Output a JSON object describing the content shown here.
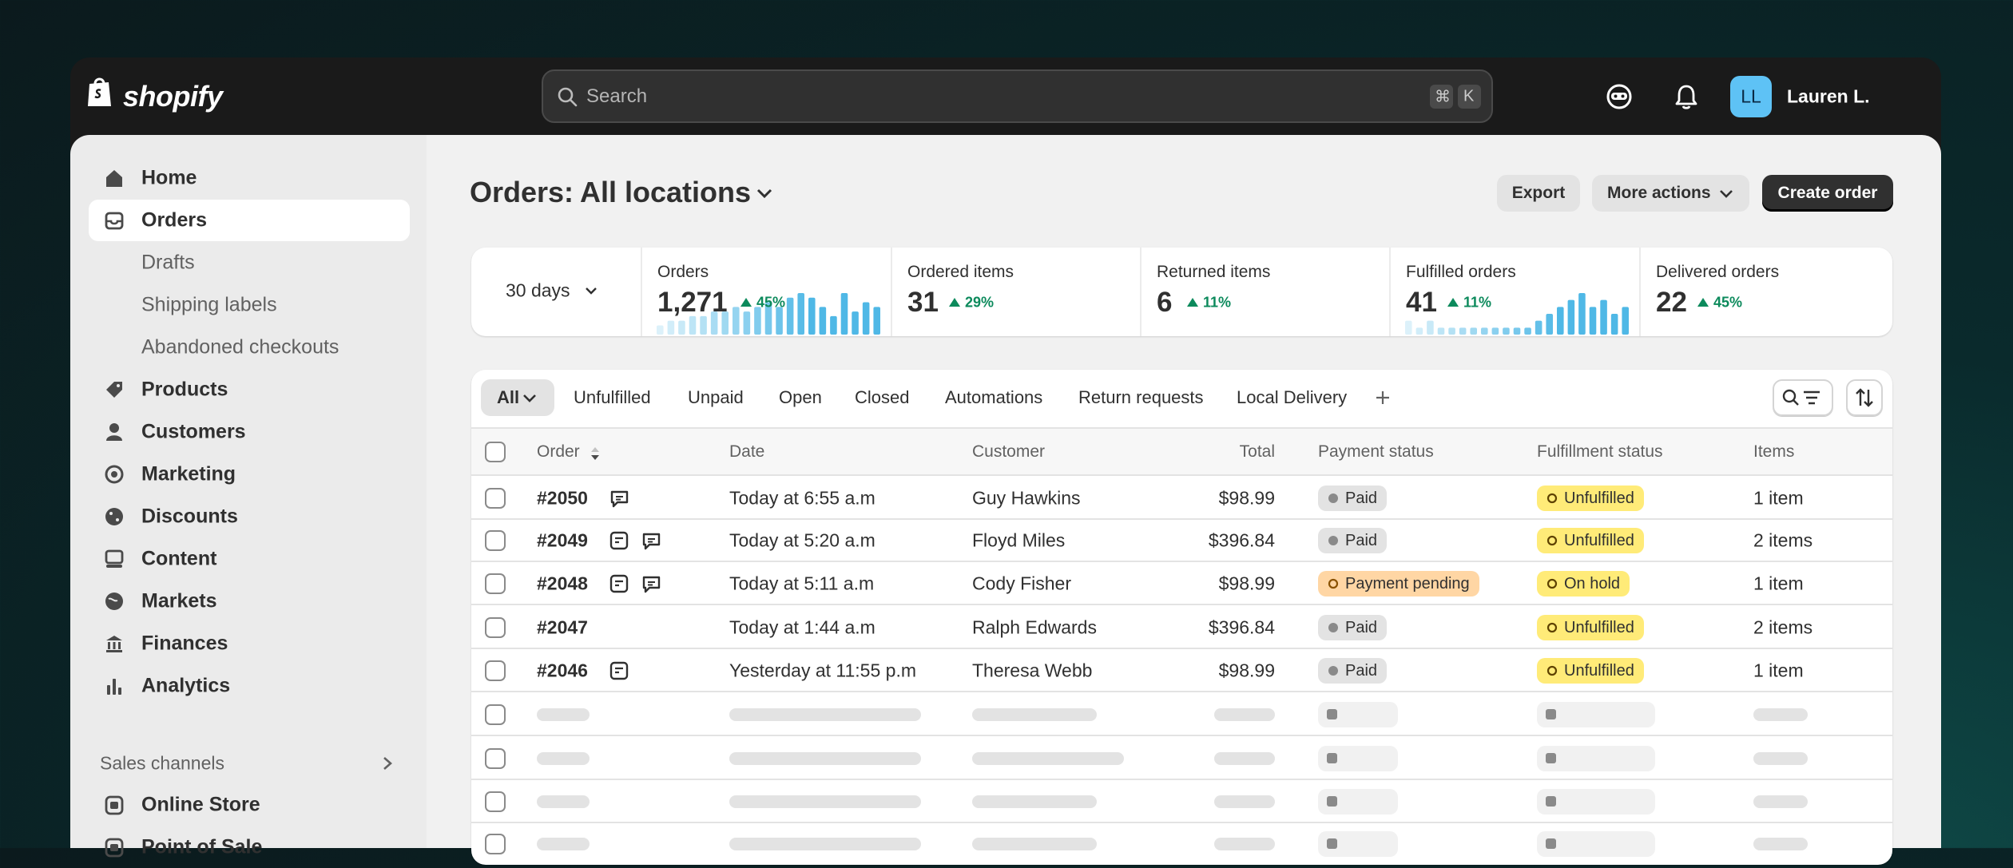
{
  "header": {
    "logo": "shopify",
    "search_placeholder": "Search",
    "shortcut": [
      "⌘",
      "K"
    ],
    "avatar_initials": "LL",
    "user_name": "Lauren L."
  },
  "sidebar": {
    "nav": [
      "Home",
      "Orders",
      "Products",
      "Customers",
      "Marketing",
      "Discounts",
      "Content",
      "Markets",
      "Finances",
      "Analytics"
    ],
    "selected": 1,
    "subnav": [
      "Drafts",
      "Shipping labels",
      "Abandoned checkouts"
    ],
    "section_title": "Sales channels",
    "channels": [
      "Online Store",
      "Point of Sale"
    ]
  },
  "page": {
    "title": "Orders:",
    "location": "All locations",
    "actions": [
      "Export",
      "More actions",
      "Create order"
    ]
  },
  "stats": {
    "period": "30 days",
    "cards": [
      {
        "label": "Orders",
        "value": "1,271",
        "change": "45%",
        "spark": [
          2,
          3,
          3,
          4,
          4,
          5,
          5,
          6,
          5,
          6,
          7,
          6,
          8,
          9,
          8,
          6,
          4,
          9,
          5,
          7,
          6
        ]
      },
      {
        "label": "Ordered items",
        "value": "31",
        "change": "29%"
      },
      {
        "label": "Returned items",
        "value": "6",
        "change": "11%"
      },
      {
        "label": "Fulfilled orders",
        "value": "41",
        "change": "11%",
        "spark": [
          2,
          1,
          2,
          1,
          1,
          1,
          1,
          1,
          1,
          1,
          1,
          1,
          2,
          3,
          4,
          5,
          6,
          4,
          5,
          3,
          4
        ]
      },
      {
        "label": "Delivered orders",
        "value": "22",
        "change": "45%"
      }
    ]
  },
  "table": {
    "tabs": [
      "All",
      "Unfulfilled",
      "Unpaid",
      "Open",
      "Closed",
      "Automations",
      "Return requests",
      "Local Delivery"
    ],
    "columns": [
      "Order",
      "Date",
      "Customer",
      "Total",
      "Payment status",
      "Fulfillment status",
      "Items"
    ],
    "rows": [
      {
        "order": "#2050",
        "date": "Today at 6:55 a.m",
        "customer": "Guy Hawkins",
        "total": "$98.99",
        "payment": "Paid",
        "payment_color": "#e3e3e3",
        "fulfillment": "Unfulfilled",
        "fulfillment_color": "#ffeb78",
        "items": "1 item"
      },
      {
        "order": "#2049",
        "date": "Today at 5:20 a.m",
        "customer": "Floyd Miles",
        "total": "$396.84",
        "payment": "Paid",
        "payment_color": "#e3e3e3",
        "fulfillment": "Unfulfilled",
        "fulfillment_color": "#ffeb78",
        "items": "2 items"
      },
      {
        "order": "#2048",
        "date": "Today at 5:11 a.m",
        "customer": "Cody Fisher",
        "total": "$98.99",
        "payment": "Payment pending",
        "payment_color": "#ffd6a4",
        "fulfillment": "On hold",
        "fulfillment_color": "#ffeb78",
        "items": "1 item"
      },
      {
        "order": "#2047",
        "date": "Today at 1:44 a.m",
        "customer": "Ralph Edwards",
        "total": "$396.84",
        "payment": "Paid",
        "payment_color": "#e3e3e3",
        "fulfillment": "Unfulfilled",
        "fulfillment_color": "#ffeb78",
        "items": "2 items"
      },
      {
        "order": "#2046",
        "date": "Yesterday at 11:55 p.m",
        "customer": "Theresa Webb",
        "total": "$98.99",
        "payment": "Paid",
        "payment_color": "#e3e3e3",
        "fulfillment": "Unfulfilled",
        "fulfillment_color": "#ffeb78",
        "items": "1 item"
      }
    ]
  }
}
